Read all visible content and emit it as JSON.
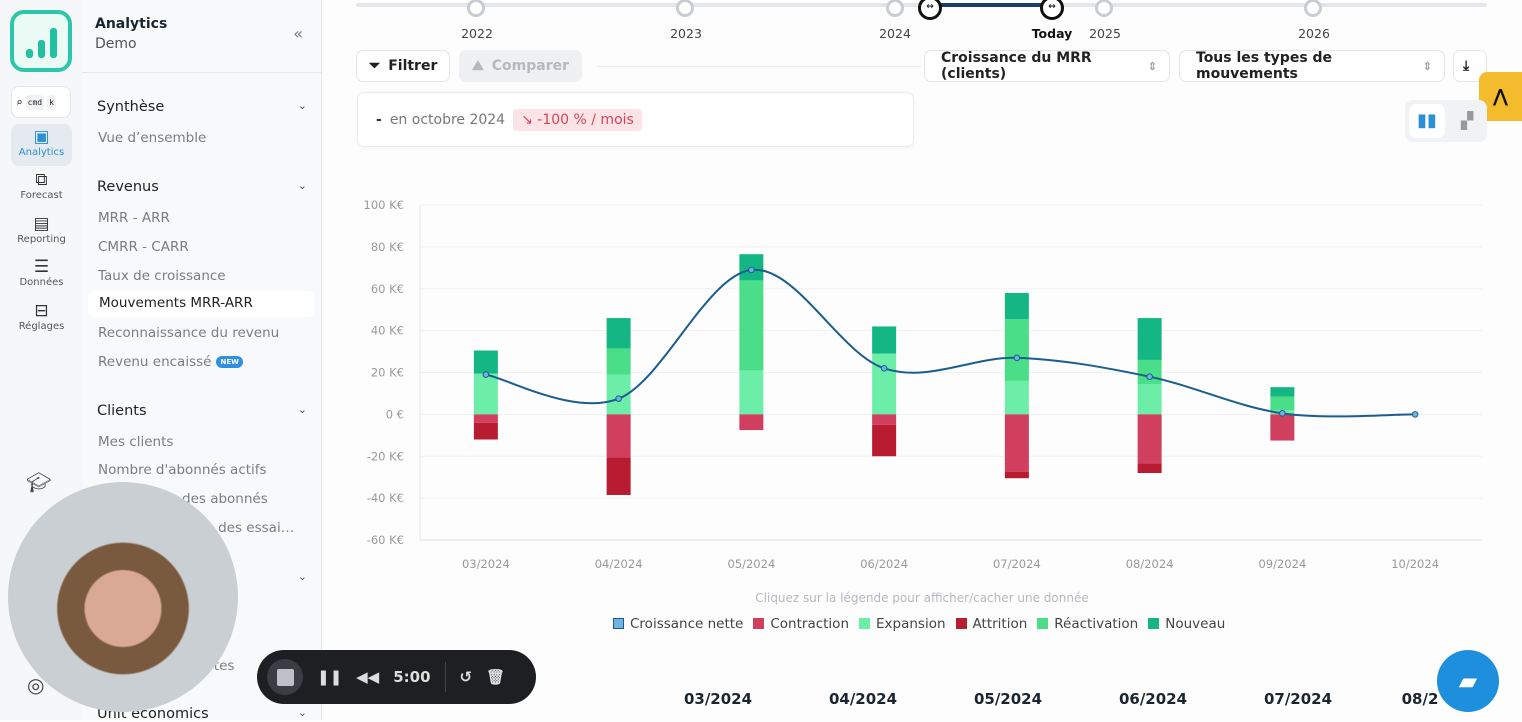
{
  "rail": {
    "search_keys": [
      "cmd",
      "k"
    ],
    "items": [
      {
        "label": "Analytics",
        "icon": "monitor-chart-icon",
        "active": true
      },
      {
        "label": "Forecast",
        "icon": "forecast-icon"
      },
      {
        "label": "Reporting",
        "icon": "clipboard-icon"
      },
      {
        "label": "Données",
        "icon": "database-icon"
      },
      {
        "label": "Réglages",
        "icon": "sliders-icon"
      }
    ]
  },
  "nav": {
    "title": "Analytics",
    "subtitle": "Demo",
    "sections": [
      {
        "label": "Synthèse",
        "items": [
          "Vue d’ensemble"
        ]
      },
      {
        "label": "Revenus",
        "items": [
          "MRR - ARR",
          "CMRR - CARR",
          "Taux de croissance",
          "Mouvements MRR-ARR",
          "Reconnaissance du revenu",
          "Revenu encaissé"
        ]
      },
      {
        "label": "Clients",
        "items": [
          "Mes clients",
          "Nombre d'abonnés actifs",
          "des abonnés",
          "on des essai…"
        ]
      },
      {
        "label": "Unit economics"
      }
    ],
    "partial_item": "ortes",
    "active_item": "Mouvements MRR-ARR",
    "new_badge": "NEW"
  },
  "timeline": {
    "years": [
      "2022",
      "2023",
      "2024",
      "2025",
      "2026"
    ],
    "today_label": "Today"
  },
  "toolbar": {
    "filter_label": "Filtrer",
    "compare_label": "Comparer",
    "metric_select": "Croissance du MRR (clients)",
    "movement_select": "Tous les types de mouvements"
  },
  "kpi": {
    "value": "-",
    "period": "en octobre 2024",
    "change": "-100 % / mois"
  },
  "colors": {
    "net": "#1b5e8c",
    "contraction": "#d13f5e",
    "expansion": "#6ceea8",
    "attrition": "#b91c30",
    "reactivation": "#4ade88",
    "nouveau": "#14b784",
    "accent": "#2a8fd6"
  },
  "chart_data": {
    "type": "bar",
    "stacked": true,
    "categories": [
      "03/2024",
      "04/2024",
      "05/2024",
      "06/2024",
      "07/2024",
      "08/2024",
      "09/2024",
      "10/2024"
    ],
    "ylim": [
      -60,
      100
    ],
    "yticks": [
      100,
      80,
      60,
      40,
      20,
      0,
      -20,
      -40,
      -60
    ],
    "ytick_labels": [
      "100 K€",
      "80 K€",
      "60 K€",
      "40 K€",
      "20 K€",
      "0 €",
      "-20 K€",
      "-40 K€",
      "-60 K€"
    ],
    "unit": "K€",
    "grid": true,
    "legend_position": "bottom",
    "legend_hint": "Cliquez sur la légende pour afficher/cacher une donnée",
    "series": [
      {
        "name": "Croissance nette",
        "type": "line",
        "values": [
          19,
          7.5,
          69,
          22,
          27,
          18,
          0.5,
          0
        ]
      },
      {
        "name": "Contraction",
        "type": "bar",
        "values": [
          -4,
          -20.5,
          -7.5,
          -5,
          -27.5,
          -23.5,
          -12.5,
          0
        ]
      },
      {
        "name": "Expansion",
        "type": "bar",
        "values": [
          19.5,
          19,
          21,
          29,
          16,
          14.5,
          2,
          0
        ]
      },
      {
        "name": "Attrition",
        "type": "bar",
        "values": [
          -8,
          -18,
          0,
          -15,
          -3,
          -4.5,
          0,
          0
        ]
      },
      {
        "name": "Réactivation",
        "type": "bar",
        "values": [
          0,
          12.5,
          43,
          0,
          29.5,
          11.5,
          6.5,
          0
        ]
      },
      {
        "name": "Nouveau",
        "type": "bar",
        "values": [
          11,
          14.5,
          12.5,
          13,
          12.5,
          20,
          4.5,
          0
        ]
      }
    ]
  },
  "table_months": [
    "03/2024",
    "04/2024",
    "05/2024",
    "06/2024",
    "07/2024",
    "08/2"
  ],
  "recorder": {
    "time": "5:00"
  }
}
